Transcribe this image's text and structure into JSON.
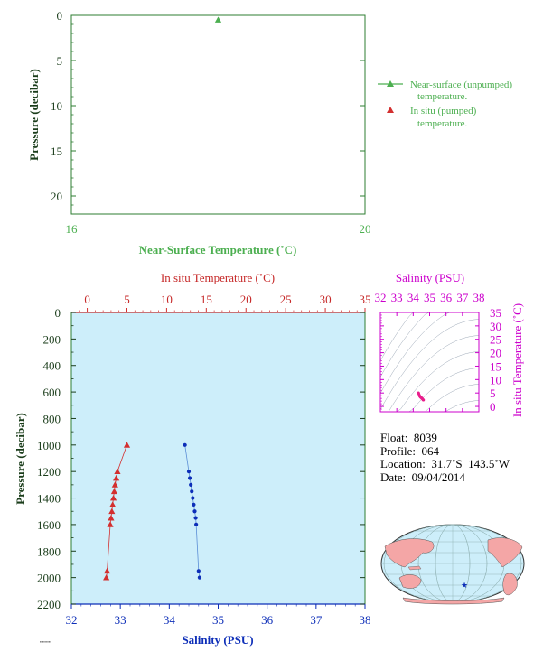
{
  "top_panel": {
    "ylabel": "Pressure (decibar)",
    "xlabel": "Near-Surface Temperature (˚C)",
    "x_ticks": [
      "16",
      "20"
    ],
    "y_ticks": [
      "0",
      "5",
      "10",
      "15",
      "20"
    ],
    "legend": [
      {
        "line1": "Near-surface (unpumped)",
        "line2": "temperature."
      },
      {
        "line1": "In situ (pumped)",
        "line2": "temperature."
      }
    ]
  },
  "main_panel": {
    "top_xlabel": "In situ Temperature (˚C)",
    "top_x_ticks": [
      "0",
      "5",
      "10",
      "15",
      "20",
      "25",
      "30",
      "35"
    ],
    "bottom_xlabel": "Salinity (PSU)",
    "bottom_x_ticks": [
      "32",
      "33",
      "34",
      "35",
      "36",
      "37",
      "38"
    ],
    "ylabel": "Pressure (decibar)",
    "y_ticks": [
      "0",
      "200",
      "400",
      "600",
      "800",
      "1000",
      "1200",
      "1400",
      "1600",
      "1800",
      "2000",
      "2200"
    ]
  },
  "ts_panel": {
    "top_xlabel": "Salinity (PSU)",
    "x_ticks": [
      "32",
      "33",
      "34",
      "35",
      "36",
      "37",
      "38"
    ],
    "right_ylabel": "In situ Temperature (˚C)",
    "y_ticks": [
      "0",
      "5",
      "10",
      "15",
      "20",
      "25",
      "30",
      "35"
    ]
  },
  "info": {
    "float": "Float:  8039",
    "profile": "Profile:  064",
    "location": "Location:  31.7˚S  143.5˚W",
    "date": "Date:  09/04/2014"
  },
  "colors": {
    "green": "#2e7d32",
    "legend_green": "#4caf50",
    "red": "#d32f2f",
    "blue": "#0d2eb8",
    "magenta": "#cc00cc",
    "panel_bg": "#cdeefa",
    "land": "#f4a6a6",
    "ocean": "#cdeefa"
  },
  "chart_data": [
    {
      "type": "scatter",
      "xlim": [
        16,
        20
      ],
      "ylim": [
        22,
        0
      ],
      "series": [
        {
          "name": "Near-surface (unpumped) temperature.",
          "marker": "triangle",
          "points": [
            {
              "x": 18.0,
              "y": 0.5
            }
          ]
        },
        {
          "name": "In situ (pumped) temperature.",
          "marker": "triangle",
          "points": []
        }
      ]
    },
    {
      "type": "line",
      "ylim": [
        2200,
        0
      ],
      "temperature_xlim": [
        -2,
        35
      ],
      "salinity_xlim": [
        32,
        38
      ],
      "temperature": {
        "pressure": [
          1000,
          1200,
          1250,
          1300,
          1350,
          1400,
          1450,
          1500,
          1550,
          1600,
          1950,
          2000
        ],
        "values": [
          5.0,
          3.8,
          3.65,
          3.5,
          3.4,
          3.3,
          3.2,
          3.1,
          3.0,
          2.9,
          2.5,
          2.4
        ]
      },
      "salinity": {
        "pressure": [
          1000,
          1200,
          1250,
          1300,
          1350,
          1400,
          1450,
          1500,
          1550,
          1600,
          1950,
          2000
        ],
        "values": [
          34.32,
          34.4,
          34.42,
          34.44,
          34.46,
          34.48,
          34.5,
          34.52,
          34.54,
          34.55,
          34.6,
          34.62
        ]
      }
    },
    {
      "type": "scatter",
      "xlim": [
        32,
        38
      ],
      "ylim": [
        -2,
        35
      ],
      "points": [
        {
          "x": 34.32,
          "y": 5.0
        },
        {
          "x": 34.4,
          "y": 3.8
        },
        {
          "x": 34.44,
          "y": 3.5
        },
        {
          "x": 34.48,
          "y": 3.3
        },
        {
          "x": 34.52,
          "y": 3.1
        },
        {
          "x": 34.55,
          "y": 2.9
        },
        {
          "x": 34.6,
          "y": 2.5
        },
        {
          "x": 34.62,
          "y": 2.4
        }
      ]
    }
  ]
}
